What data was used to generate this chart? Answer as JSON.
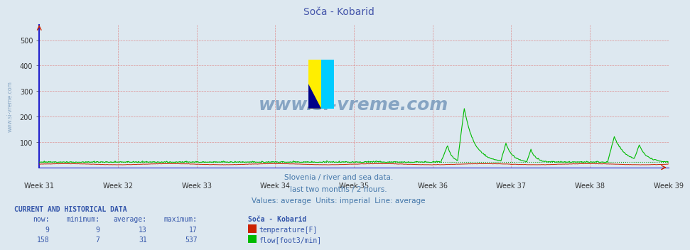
{
  "title": "Soča - Kobarid",
  "bg_color": "#dde8f0",
  "plot_bg_color": "#dde8f0",
  "title_color": "#4455aa",
  "title_fontsize": 10,
  "xlim": [
    0,
    1344
  ],
  "ylim": [
    0,
    560
  ],
  "yticks": [
    100,
    200,
    300,
    400,
    500
  ],
  "weeks": [
    "Week 31",
    "Week 32",
    "Week 33",
    "Week 34",
    "Week 35",
    "Week 36",
    "Week 37",
    "Week 38",
    "Week 39"
  ],
  "week_positions": [
    0,
    168,
    336,
    504,
    672,
    840,
    1008,
    1176,
    1344
  ],
  "grid_color": "#dd8888",
  "temp_color": "#cc2200",
  "flow_color": "#00bb00",
  "flow_dot_color": "#009900",
  "left_axis_color": "#2222cc",
  "watermark_text": "www.si-vreme.com",
  "watermark_color": "#7799bb",
  "subtitle1": "Slovenia / river and sea data.",
  "subtitle2": "last two months / 2 hours.",
  "subtitle3": "Values: average  Units: imperial  Line: average",
  "subtitle_color": "#4477aa",
  "footer_title": "CURRENT AND HISTORICAL DATA",
  "footer_color": "#3355aa",
  "table_headers": [
    "now:",
    "minimum:",
    "average:",
    "maximum:",
    "Soča - Kobarid"
  ],
  "temp_row": [
    "9",
    "9",
    "13",
    "17",
    "temperature[F]"
  ],
  "flow_row": [
    "158",
    "7",
    "31",
    "537",
    "flow[foot3/min]"
  ]
}
